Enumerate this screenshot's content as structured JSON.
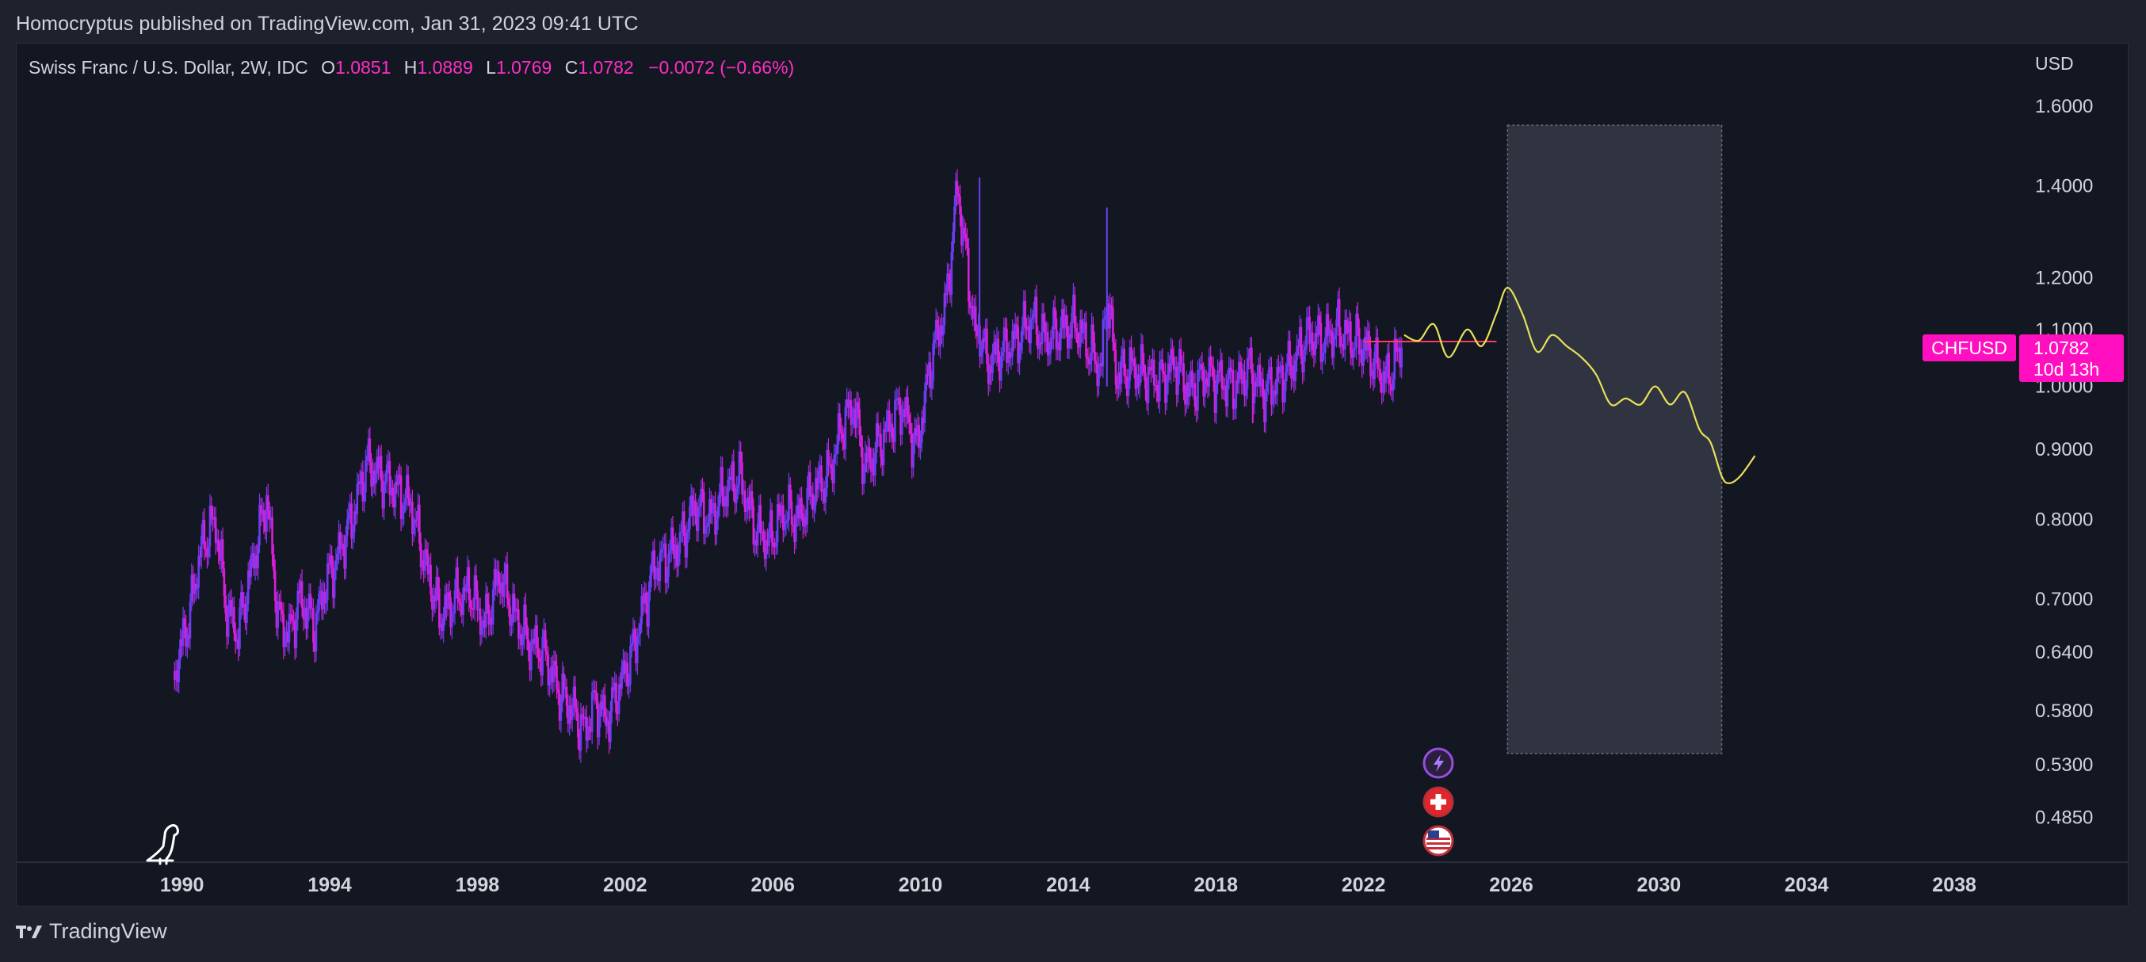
{
  "header": {
    "published": "Homocryptus published on TradingView.com, Jan 31, 2023 09:41 UTC"
  },
  "legend": {
    "symbol": "Swiss Franc / U.S. Dollar, 2W, IDC",
    "o_label": "O",
    "o_value": "1.0851",
    "h_label": "H",
    "h_value": "1.0889",
    "l_label": "L",
    "l_value": "1.0769",
    "c_label": "C",
    "c_value": "1.0782",
    "change": "−0.0072 (−0.66%)"
  },
  "price_axis": {
    "currency": "USD"
  },
  "price_tag": {
    "symbol": "CHFUSD",
    "price": "1.0782",
    "countdown": "10d 13h"
  },
  "footer": {
    "brand": "TradingView"
  },
  "colors": {
    "background": "#131722",
    "candle_up": "#6b3df2",
    "candle_down": "#d81fd8",
    "projection": "#e8df5a",
    "highlight_box": "#363a45",
    "price_tag": "#ff0fbf",
    "axis_text": "#d1d4dc",
    "legend_values": "#ff2ec4"
  },
  "event_icons": [
    "flash-icon",
    "swiss-flag-icon",
    "us-flag-icon"
  ],
  "chart_data": {
    "type": "line",
    "title": "Swiss Franc / U.S. Dollar, 2W, IDC",
    "scale": "log",
    "x_ticks": [
      1990,
      1994,
      1998,
      2002,
      2006,
      2010,
      2014,
      2018,
      2022,
      2026,
      2030,
      2034,
      2038
    ],
    "y_ticks": [
      1.6,
      1.4,
      1.2,
      1.1,
      1.0,
      0.9,
      0.8,
      0.7,
      0.64,
      0.58,
      0.53,
      0.485
    ],
    "y_tick_labels": [
      "1.6000",
      "1.4000",
      "1.2000",
      "1.1000",
      "1.0000",
      "0.9000",
      "0.8000",
      "0.7000",
      "0.6400",
      "0.5800",
      "0.5300",
      "0.4850"
    ],
    "xlim": [
      1985.5,
      2039.5
    ],
    "ylim": [
      0.45,
      1.78
    ],
    "grid": false,
    "series": [
      {
        "type": "price",
        "x": [
          1989.8,
          1990.2,
          1990.5,
          1990.9,
          1991.2,
          1991.5,
          1991.9,
          1992.3,
          1992.6,
          1992.9,
          1993.2,
          1993.6,
          1993.9,
          1994.2,
          1994.6,
          1995.0,
          1995.4,
          1995.8,
          1996.2,
          1996.6,
          1997.0,
          1997.4,
          1997.8,
          1998.2,
          1998.6,
          1999.0,
          1999.4,
          1999.8,
          2000.2,
          2000.6,
          2000.9,
          2001.2,
          2001.5,
          2001.8,
          2002.2,
          2002.5,
          2002.8,
          2003.1,
          2003.5,
          2003.9,
          2004.3,
          2004.7,
          2005.1,
          2005.5,
          2005.9,
          2006.3,
          2006.7,
          2007.1,
          2007.5,
          2007.9,
          2008.2,
          2008.5,
          2008.8,
          2009.1,
          2009.5,
          2009.9,
          2010.3,
          2010.7,
          2011.0,
          2011.3,
          2011.5,
          2011.6,
          2011.8,
          2012.2,
          2012.6,
          2013.0,
          2013.4,
          2013.8,
          2014.2,
          2014.6,
          2014.9,
          2015.05,
          2015.3,
          2015.7,
          2016.1,
          2016.5,
          2016.9,
          2017.3,
          2017.7,
          2018.1,
          2018.5,
          2018.9,
          2019.3,
          2019.7,
          2020.1,
          2020.5,
          2020.9,
          2021.3,
          2021.7,
          2022.0,
          2022.3,
          2022.6,
          2022.8,
          2023.05
        ],
        "y": [
          0.62,
          0.68,
          0.76,
          0.8,
          0.69,
          0.66,
          0.74,
          0.83,
          0.68,
          0.66,
          0.7,
          0.67,
          0.72,
          0.75,
          0.8,
          0.88,
          0.86,
          0.84,
          0.82,
          0.74,
          0.68,
          0.7,
          0.71,
          0.67,
          0.73,
          0.68,
          0.65,
          0.64,
          0.6,
          0.58,
          0.56,
          0.59,
          0.57,
          0.6,
          0.64,
          0.69,
          0.74,
          0.75,
          0.77,
          0.82,
          0.8,
          0.84,
          0.86,
          0.79,
          0.77,
          0.81,
          0.8,
          0.84,
          0.86,
          0.94,
          0.97,
          0.87,
          0.9,
          0.93,
          0.97,
          0.9,
          1.05,
          1.15,
          1.4,
          1.2,
          1.08,
          1.1,
          1.04,
          1.06,
          1.08,
          1.12,
          1.08,
          1.1,
          1.11,
          1.06,
          1.03,
          1.18,
          1.02,
          1.03,
          1.02,
          1.01,
          1.04,
          0.99,
          1.02,
          1.01,
          1.0,
          1.03,
          0.99,
          1.01,
          1.04,
          1.09,
          1.08,
          1.1,
          1.08,
          1.07,
          1.04,
          1.01,
          1.03,
          1.08
        ]
      },
      {
        "type": "projection",
        "x": [
          2023.1,
          2023.5,
          2023.9,
          2024.3,
          2024.8,
          2025.2,
          2025.6,
          2025.9,
          2026.3,
          2026.7,
          2027.1,
          2027.5,
          2027.9,
          2028.3,
          2028.7,
          2029.1,
          2029.5,
          2029.9,
          2030.3,
          2030.7,
          2031.1,
          2031.4,
          2031.7,
          2031.9,
          2032.2,
          2032.6
        ],
        "y": [
          1.09,
          1.08,
          1.11,
          1.05,
          1.1,
          1.07,
          1.13,
          1.18,
          1.13,
          1.06,
          1.09,
          1.07,
          1.05,
          1.02,
          0.97,
          0.98,
          0.97,
          1.0,
          0.97,
          0.99,
          0.93,
          0.91,
          0.86,
          0.85,
          0.86,
          0.89
        ]
      }
    ],
    "reference_line": {
      "y": 1.0782,
      "x_start": 2022.0,
      "x_end": 2025.6
    },
    "highlight_range": {
      "x_start": 2025.9,
      "x_end": 2031.7,
      "y_start": 0.54,
      "y_end": 1.55
    }
  }
}
